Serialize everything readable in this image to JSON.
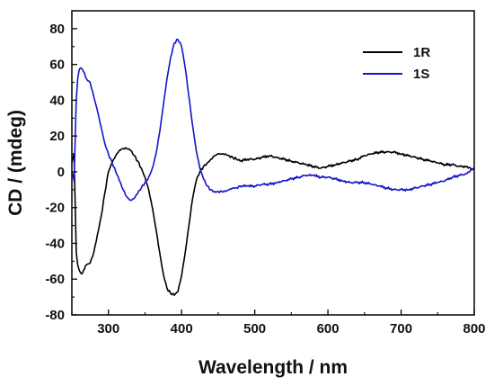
{
  "chart_data": {
    "type": "line",
    "xlabel": "Wavelength / nm",
    "ylabel": "CD / (mdeg)",
    "xlim": [
      250,
      800
    ],
    "ylim": [
      -80,
      90
    ],
    "xticks": [
      300,
      400,
      500,
      600,
      700,
      800
    ],
    "yticks": [
      -80,
      -60,
      -40,
      -20,
      0,
      20,
      40,
      60,
      80
    ],
    "grid": false,
    "legend_position": "top-right",
    "series": [
      {
        "name": "1R",
        "color": "#000000",
        "x": [
          250,
          253,
          256,
          258,
          260,
          263,
          266,
          270,
          275,
          280,
          285,
          290,
          295,
          300,
          305,
          310,
          315,
          320,
          325,
          330,
          335,
          340,
          345,
          350,
          355,
          360,
          365,
          370,
          375,
          380,
          385,
          390,
          395,
          400,
          405,
          410,
          415,
          420,
          425,
          430,
          435,
          440,
          445,
          450,
          455,
          460,
          465,
          470,
          475,
          480,
          490,
          500,
          510,
          520,
          530,
          540,
          550,
          560,
          570,
          580,
          590,
          600,
          610,
          620,
          630,
          640,
          650,
          660,
          670,
          680,
          690,
          700,
          710,
          720,
          730,
          740,
          750,
          760,
          770,
          780,
          790,
          795,
          800
        ],
        "y": [
          5,
          10,
          -45,
          -52,
          -55,
          -57,
          -55,
          -52,
          -51,
          -45,
          -35,
          -25,
          -12,
          0,
          5,
          9,
          12,
          13,
          13,
          12,
          9,
          6,
          2,
          -3,
          -10,
          -20,
          -32,
          -45,
          -57,
          -65,
          -68,
          -69,
          -67,
          -58,
          -45,
          -30,
          -15,
          -5,
          0,
          3,
          5,
          7,
          9,
          10,
          10,
          10,
          9,
          8,
          7,
          6,
          7,
          7,
          8,
          9,
          8,
          7,
          6,
          5,
          4,
          3,
          2,
          3,
          4,
          5,
          6,
          7,
          9,
          10,
          11,
          11,
          11,
          10,
          9,
          8,
          7,
          6,
          5,
          4,
          4,
          3,
          3,
          2,
          1
        ]
      },
      {
        "name": "1S",
        "color": "#1414c8",
        "x": [
          250,
          253,
          256,
          258,
          260,
          263,
          266,
          270,
          275,
          280,
          285,
          290,
          295,
          300,
          305,
          310,
          315,
          320,
          325,
          330,
          335,
          340,
          345,
          350,
          355,
          360,
          365,
          370,
          375,
          380,
          385,
          390,
          395,
          400,
          405,
          410,
          415,
          420,
          425,
          430,
          435,
          440,
          445,
          450,
          455,
          460,
          465,
          470,
          475,
          480,
          490,
          500,
          510,
          520,
          530,
          540,
          550,
          560,
          570,
          580,
          590,
          600,
          610,
          620,
          630,
          640,
          650,
          660,
          670,
          680,
          690,
          700,
          710,
          720,
          730,
          740,
          750,
          760,
          770,
          780,
          790,
          795,
          800
        ],
        "y": [
          0,
          -5,
          40,
          52,
          57,
          58,
          56,
          52,
          50,
          42,
          34,
          25,
          16,
          10,
          5,
          0,
          -5,
          -10,
          -14,
          -16,
          -15,
          -12,
          -9,
          -6,
          -3,
          2,
          10,
          22,
          37,
          52,
          64,
          72,
          74,
          70,
          58,
          42,
          26,
          12,
          2,
          -4,
          -8,
          -10,
          -11,
          -11,
          -11,
          -11,
          -10,
          -9,
          -9,
          -8,
          -8,
          -8,
          -7,
          -7,
          -6,
          -5,
          -4,
          -3,
          -2,
          -2,
          -3,
          -3,
          -4,
          -5,
          -6,
          -6,
          -6,
          -7,
          -8,
          -9,
          -10,
          -10,
          -10,
          -9,
          -8,
          -7,
          -6,
          -5,
          -3,
          -2,
          -1,
          1,
          2
        ]
      }
    ]
  }
}
